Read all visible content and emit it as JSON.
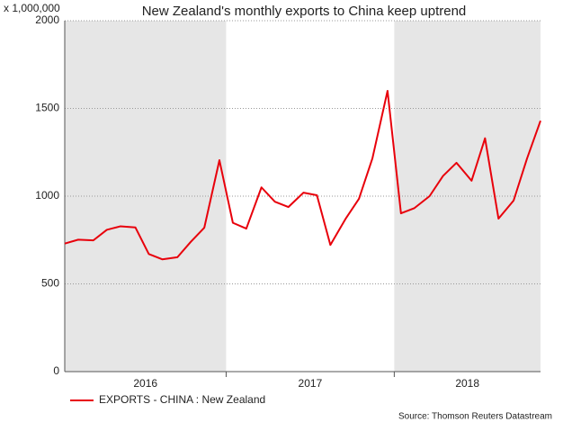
{
  "chart_data": {
    "type": "line",
    "title": "New Zealand's monthly exports to China keep uptrend",
    "y_unit": "x 1,000,000",
    "source": "Source: Thomson Reuters Datastream",
    "x": [
      2016.04,
      2016.12,
      2016.21,
      2016.29,
      2016.37,
      2016.46,
      2016.54,
      2016.62,
      2016.71,
      2016.79,
      2016.87,
      2016.96,
      2017.04,
      2017.12,
      2017.21,
      2017.29,
      2017.37,
      2017.46,
      2017.54,
      2017.62,
      2017.71,
      2017.79,
      2017.87,
      2017.96,
      2018.04,
      2018.12,
      2018.21,
      2018.29,
      2018.37,
      2018.46,
      2018.54,
      2018.62,
      2018.71,
      2018.79,
      2018.87
    ],
    "series": [
      {
        "name": "EXPORTS - CHINA : New Zealand",
        "color": "#e8000b",
        "values": [
          730,
          752,
          748,
          808,
          828,
          822,
          670,
          640,
          652,
          740,
          820,
          1205,
          848,
          815,
          1050,
          968,
          938,
          1020,
          1005,
          722,
          870,
          985,
          1215,
          1600,
          902,
          932,
          1000,
          1115,
          1190,
          1088,
          1330,
          872,
          975,
          1215,
          1430
        ]
      }
    ],
    "xlim": [
      2016.04,
      2018.87
    ],
    "xticks": [
      2017,
      2018
    ],
    "year_bands": [
      {
        "label": "2016",
        "start": 2016,
        "end": 2017,
        "shaded": true
      },
      {
        "label": "2017",
        "start": 2017,
        "end": 2018,
        "shaded": false
      },
      {
        "label": "2018",
        "start": 2018,
        "end": 2019,
        "shaded": true
      }
    ],
    "ylim": [
      0,
      2000
    ],
    "yticks": [
      0,
      500,
      1000,
      1500,
      2000
    ],
    "grid": true
  }
}
